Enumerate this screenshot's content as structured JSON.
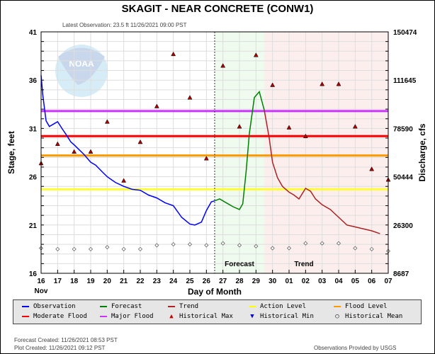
{
  "header": {
    "title": "SKAGIT - NEAR CONCRETE  (CONW1)",
    "latest_observation": "Latest Observation: 23.5 ft 11/26/2021 09:00 PST"
  },
  "footer": {
    "forecast_created": "Forecast Created: 11/26/2021 08:53 PST",
    "plot_created": "Plot Created: 11/26/2021 09:12 PST",
    "provider": "Observations Provided by USGS"
  },
  "regions": {
    "forecast_label": "Forecast",
    "trend_label": "Trend"
  },
  "legend": [
    {
      "label": "Observation",
      "color": "#0000ff",
      "type": "line"
    },
    {
      "label": "Forecast",
      "color": "#008000",
      "type": "line"
    },
    {
      "label": "Trend",
      "color": "#b22222",
      "type": "line"
    },
    {
      "label": "Action Level",
      "color": "#ffff00",
      "type": "line"
    },
    {
      "label": "Flood Level",
      "color": "#ff9900",
      "type": "line"
    },
    {
      "label": "Moderate Flood",
      "color": "#ff0000",
      "type": "line"
    },
    {
      "label": "Major Flood",
      "color": "#cc33ff",
      "type": "line"
    },
    {
      "label": "Historical Max",
      "color": "#cc0000",
      "type": "triangle-up"
    },
    {
      "label": "Historical Min",
      "color": "#0000cc",
      "type": "triangle-down"
    },
    {
      "label": "Historical Mean",
      "color": "#000000",
      "type": "circle"
    }
  ],
  "chart_data": {
    "type": "line",
    "title": "SKAGIT - NEAR CONCRETE  (CONW1)",
    "xlabel": "Day of Month",
    "ylabel": "Stage, feet",
    "y2label": "Discharge, cfs",
    "x_month_label": "Nov",
    "categories": [
      "16",
      "17",
      "18",
      "19",
      "20",
      "21",
      "22",
      "23",
      "24",
      "25",
      "26",
      "27",
      "28",
      "29",
      "30",
      "01",
      "02",
      "03",
      "04",
      "05",
      "06",
      "07"
    ],
    "ylim": [
      16,
      41
    ],
    "yticks": [
      16,
      21,
      26,
      31,
      36,
      41
    ],
    "y2ticks": [
      "8687",
      "26300",
      "50444",
      "78590",
      "111645",
      "150474"
    ],
    "thresholds": {
      "major_flood": 32.8,
      "moderate_flood": 30.2,
      "flood_level": 28.2,
      "action_level": 24.7
    },
    "series": [
      {
        "name": "Observation",
        "x": [
          0,
          0.1,
          0.3,
          0.5,
          0.8,
          1.0,
          1.3,
          1.5,
          1.8,
          2.0,
          2.3,
          2.6,
          3.0,
          3.3,
          3.7,
          4.0,
          4.5,
          5.0,
          5.5,
          6.0,
          6.5,
          7.0,
          7.5,
          8.0,
          8.5,
          9.0,
          9.3,
          9.7,
          10.0,
          10.3,
          10.5
        ],
        "values": [
          36.5,
          34.5,
          31.8,
          31.2,
          31.5,
          31.7,
          30.9,
          30.4,
          29.6,
          29.3,
          28.8,
          28.3,
          27.5,
          27.2,
          26.5,
          26.0,
          25.4,
          25.0,
          24.7,
          24.6,
          24.1,
          23.8,
          23.3,
          23.0,
          21.8,
          21.1,
          21.0,
          21.3,
          22.5,
          23.4,
          23.5
        ]
      },
      {
        "name": "Forecast",
        "x": [
          10.5,
          10.8,
          11.2,
          11.6,
          12.0,
          12.2,
          12.4,
          12.6,
          12.9,
          13.2,
          13.5
        ],
        "values": [
          23.5,
          23.7,
          23.3,
          22.9,
          22.6,
          23.2,
          26.5,
          30.5,
          34.2,
          34.8,
          32.9
        ]
      },
      {
        "name": "Trend",
        "x": [
          13.5,
          13.8,
          14.0,
          14.3,
          14.6,
          15.0,
          15.3,
          15.6,
          16.0,
          16.3,
          16.6,
          17.0,
          17.5,
          18.0,
          18.5,
          19.0,
          19.5,
          20.0,
          20.5
        ],
        "values": [
          32.9,
          30.0,
          27.5,
          25.9,
          25.0,
          24.4,
          24.1,
          23.7,
          24.8,
          24.5,
          23.7,
          23.1,
          22.6,
          21.8,
          21.0,
          20.8,
          20.6,
          20.4,
          20.1
        ]
      },
      {
        "name": "Historical Max",
        "x": [
          0,
          1,
          2,
          3,
          4,
          5,
          6,
          7,
          8,
          9,
          10,
          11,
          12,
          13,
          14,
          15,
          16,
          17,
          18,
          19,
          20,
          21
        ],
        "values": [
          27.4,
          29.4,
          28.6,
          28.6,
          31.7,
          25.6,
          29.6,
          33.3,
          38.7,
          34.2,
          27.9,
          37.5,
          31.2,
          38.6,
          35.5,
          31.1,
          30.2,
          35.6,
          35.6,
          31.2,
          26.8,
          25.7
        ]
      },
      {
        "name": "Historical Mean",
        "x": [
          0,
          1,
          2,
          3,
          4,
          5,
          6,
          7,
          8,
          9,
          10,
          11,
          12,
          13,
          14,
          15,
          16,
          17,
          18,
          19,
          20,
          21
        ],
        "values": [
          18.6,
          18.5,
          18.5,
          18.5,
          18.7,
          18.5,
          18.5,
          18.9,
          19.0,
          19.0,
          18.9,
          19.1,
          18.9,
          18.8,
          18.6,
          18.6,
          19.1,
          19.1,
          19.1,
          18.6,
          18.5,
          18.3
        ]
      }
    ],
    "forecast_region": [
      10.5,
      13.5
    ],
    "trend_region": [
      13.5,
      21
    ],
    "grid": true,
    "legend_position": "bottom"
  }
}
